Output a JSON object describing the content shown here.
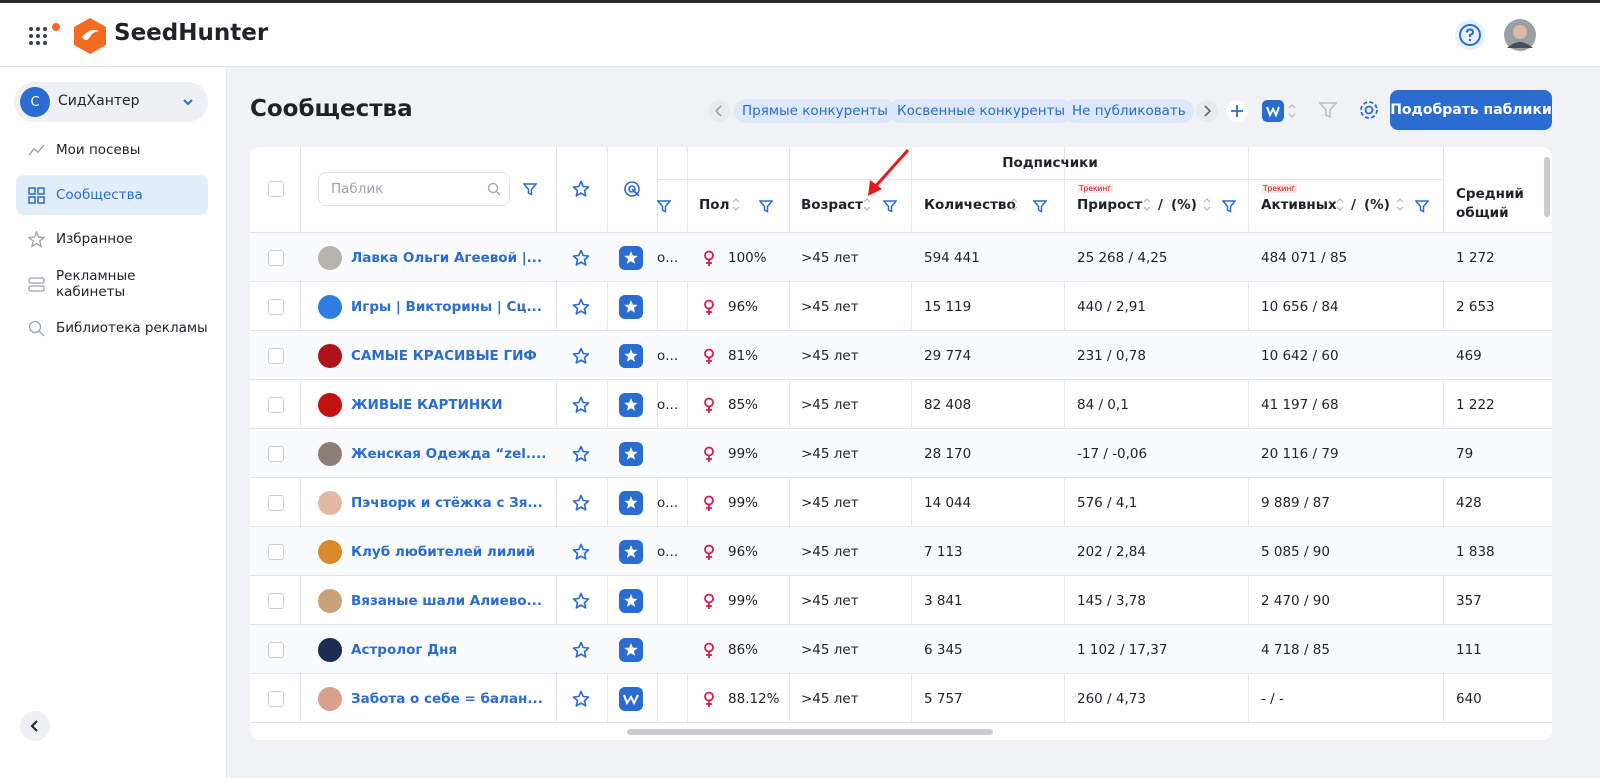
{
  "header": {
    "brand": "SeedHunter"
  },
  "sidebar": {
    "workspace_initial": "С",
    "workspace": "СидХантер",
    "menu": [
      "Мои посевы",
      "Сообщества",
      "Избранное",
      "Рекламные кабинеты",
      "Библиотека рекламы"
    ]
  },
  "page": {
    "title": "Сообщества",
    "tags": [
      "Прямые конкуренты",
      "Косвенные конкуренты",
      "Не публиковать"
    ],
    "primary_button": "Подобрать паблики"
  },
  "table": {
    "search_placeholder": "Паблик",
    "group_header": "Подписчики",
    "tracking_label": "Трекинг",
    "columns": {
      "gender": "Пол",
      "age": "Возраст",
      "count": "Количество",
      "growth": "Прирост",
      "active": "Активных",
      "slash": "/",
      "percent": "(%)",
      "avg": "Средний общий"
    },
    "rows": [
      {
        "name": "Лавка Ольги Агеевой |...",
        "cut": "о...",
        "gender": "100%",
        "age": ">45 лет",
        "count": "594 441",
        "growth": "25 268 / 4,25",
        "active": "484 071 / 85",
        "avg": "1 272",
        "platform": "star",
        "avatar": "#b9b3ad"
      },
      {
        "name": "Игры | Викторины | Сц...",
        "cut": null,
        "gender": "96%",
        "age": ">45 лет",
        "count": "15 119",
        "growth": "440 / 2,91",
        "active": "10 656 / 84",
        "avg": "2 653",
        "platform": "star",
        "avatar": "#2f7de1"
      },
      {
        "name": "САМЫЕ КРАСИВЫЕ ГИФ",
        "cut": "о...",
        "gender": "81%",
        "age": ">45 лет",
        "count": "29 774",
        "growth": "231 / 0,78",
        "active": "10 642 / 60",
        "avg": "469",
        "platform": "star",
        "avatar": "#b0121b"
      },
      {
        "name": "ЖИВЫЕ КАРТИНКИ",
        "cut": "о...",
        "gender": "85%",
        "age": ">45 лет",
        "count": "82 408",
        "growth": "84 / 0,1",
        "active": "41 197 / 68",
        "avg": "1 222",
        "platform": "star",
        "avatar": "#c40f0f"
      },
      {
        "name": "Женская Одежда “zel....",
        "cut": null,
        "gender": "99%",
        "age": ">45 лет",
        "count": "28 170",
        "growth": "-17 / -0,06",
        "active": "20 116 / 79",
        "avg": "79",
        "platform": "star",
        "avatar": "#8d7f78"
      },
      {
        "name": "Пэчворк и стёжка с Зя...",
        "cut": "о...",
        "gender": "99%",
        "age": ">45 лет",
        "count": "14 044",
        "growth": "576 / 4,1",
        "active": "9 889 / 87",
        "avg": "428",
        "platform": "star",
        "avatar": "#e2b8a5"
      },
      {
        "name": "Клуб любителей лилий",
        "cut": "о...",
        "gender": "96%",
        "age": ">45 лет",
        "count": "7 113",
        "growth": "202 / 2,84",
        "active": "5 085 / 90",
        "avg": "1 838",
        "platform": "star",
        "avatar": "#d98a2b"
      },
      {
        "name": "Вязаные шали Алиево...",
        "cut": null,
        "gender": "99%",
        "age": ">45 лет",
        "count": "3 841",
        "growth": "145 / 3,78",
        "active": "2 470 / 90",
        "avg": "357",
        "platform": "star",
        "avatar": "#c9a27a"
      },
      {
        "name": "Астролог Дня",
        "cut": null,
        "gender": "86%",
        "age": ">45 лет",
        "count": "6 345",
        "growth": "1 102 / 17,37",
        "active": "4 718 / 85",
        "avg": "111",
        "platform": "star",
        "avatar": "#1d2c52"
      },
      {
        "name": "Забота о себе = балан...",
        "cut": null,
        "gender": "88.12%",
        "age": ">45 лет",
        "count": "5 757",
        "growth": "260 / 4,73",
        "active": "- / -",
        "avg": "640",
        "platform": "vk",
        "avatar": "#d9a08c"
      }
    ]
  }
}
